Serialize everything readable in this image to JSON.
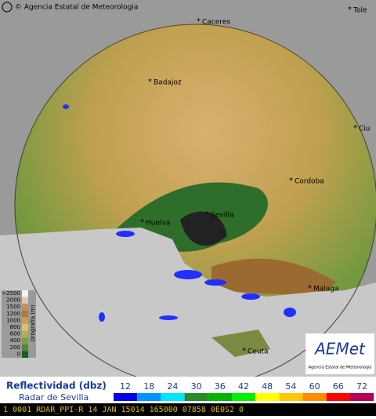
{
  "copyright": "© Agencia Estatal de Meteorologia",
  "cities": [
    "Caceres",
    "Tole",
    "Badajoz",
    "Ciu",
    "Cordoba",
    "Huelva",
    "Sevilla",
    "Malaga",
    "Ceuta"
  ],
  "orography": {
    "title": "Orografía (m)",
    "labels": [
      ">2500",
      "2000",
      "1500",
      "1200",
      "1000",
      "800",
      "600",
      "400",
      "200",
      "0"
    ]
  },
  "logo": {
    "name": "AEMet",
    "subtitle": "Agencia Estatal de Meteorología"
  },
  "legend": {
    "title": "Reflectividad (dbz)",
    "radar": "Radar de Sevilla",
    "values": [
      12,
      18,
      24,
      30,
      36,
      42,
      48,
      54,
      60,
      66,
      72
    ],
    "colors": [
      "#0000f0",
      "#0096ff",
      "#00e6ff",
      "#2a8a2a",
      "#00b400",
      "#00f000",
      "#ffff00",
      "#ffc800",
      "#ff8c00",
      "#ff0000",
      "#b4005a"
    ]
  },
  "status": "1 0001 RDAR_PPI-R 14 JAN 15014 165000 07858 0E0S2 0"
}
